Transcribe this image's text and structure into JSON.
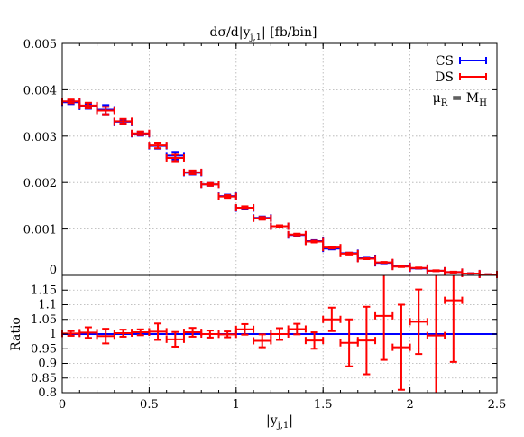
{
  "chart_data": [
    {
      "type": "scatter",
      "title": "dσ/d|y_j,1| [fb/bin]",
      "title_parts": {
        "pre": "dσ/d|y",
        "sub": "j,1",
        "post": "| [fb/bin]"
      },
      "xlim": [
        0,
        2.5
      ],
      "ylim": [
        0,
        0.005
      ],
      "y_ticks": [
        "0",
        "0.001",
        "0.002",
        "0.003",
        "0.004",
        "0.005"
      ],
      "y_tick_values": [
        0,
        0.001,
        0.002,
        0.003,
        0.004,
        0.005
      ],
      "grid": true,
      "legend": "top-right",
      "annotation": {
        "text": "μR = MH",
        "pre": "μ",
        "sub1": "R",
        "mid": " = M",
        "sub2": "H"
      },
      "bin_width": 0.1,
      "series": [
        {
          "name": "CS",
          "color": "#0000ff",
          "x": [
            0.05,
            0.15,
            0.25,
            0.35,
            0.45,
            0.55,
            0.65,
            0.75,
            0.85,
            0.95,
            1.05,
            1.15,
            1.25,
            1.35,
            1.45,
            1.55,
            1.65,
            1.75,
            1.85,
            1.95,
            2.05,
            2.15,
            2.25,
            2.35,
            2.45
          ],
          "y": [
            0.00373,
            0.00364,
            0.00357,
            0.00331,
            0.00305,
            0.00279,
            0.00258,
            0.00221,
            0.00196,
            0.00171,
            0.00145,
            0.00124,
            0.00106,
            0.00087,
            0.00074,
            0.00058,
            0.00048,
            0.00037,
            0.00027,
            0.0002,
            0.00015,
            0.0001,
            7e-05,
            4e-05,
            2e-05
          ],
          "yerr": [
            4e-05,
            5e-05,
            0.0001,
            4e-05,
            4e-05,
            6e-05,
            8e-05,
            4e-05,
            3e-05,
            3e-05,
            3e-05,
            3e-05,
            2e-05,
            2e-05,
            2e-05,
            2e-05,
            1e-05,
            1e-05,
            1e-05,
            1e-05,
            5e-06,
            5e-06,
            5e-06,
            5e-06,
            3e-06
          ]
        },
        {
          "name": "DS",
          "color": "#ff0000",
          "x": [
            0.05,
            0.15,
            0.25,
            0.35,
            0.45,
            0.55,
            0.65,
            0.75,
            0.85,
            0.95,
            1.05,
            1.15,
            1.25,
            1.35,
            1.45,
            1.55,
            1.65,
            1.75,
            1.85,
            1.95,
            2.05,
            2.15,
            2.25,
            2.35,
            2.45
          ],
          "y": [
            0.00375,
            0.00366,
            0.00355,
            0.00332,
            0.00306,
            0.0028,
            0.00253,
            0.00222,
            0.00196,
            0.0017,
            0.00146,
            0.00123,
            0.00106,
            0.00088,
            0.00073,
            0.0006,
            0.00047,
            0.00036,
            0.00028,
            0.00019,
            0.00016,
            0.0001,
            7e-05,
            4e-05,
            2e-05
          ],
          "yerr": [
            4e-05,
            6e-05,
            8e-05,
            5e-05,
            4e-05,
            6e-05,
            7e-05,
            4e-05,
            3e-05,
            3e-05,
            3e-05,
            3e-05,
            2e-05,
            2e-05,
            2e-05,
            2e-05,
            2e-05,
            1e-05,
            1e-05,
            1e-05,
            1e-05,
            1e-05,
            1e-05,
            5e-06,
            5e-06
          ]
        }
      ]
    },
    {
      "type": "scatter",
      "xlabel": "|y_j,1|",
      "xlabel_parts": {
        "pre": "|y",
        "sub": "j,1",
        "post": "|"
      },
      "ylabel": "Ratio",
      "xlim": [
        0,
        2.5
      ],
      "ylim": [
        0.8,
        1.2
      ],
      "x_ticks": [
        "0",
        "0.5",
        "1",
        "1.5",
        "2",
        "2.5"
      ],
      "x_tick_values": [
        0,
        0.5,
        1,
        1.5,
        2,
        2.5
      ],
      "y_ticks": [
        "0.8",
        "0.85",
        "0.9",
        "0.95",
        "1",
        "1.05",
        "1.1",
        "1.15"
      ],
      "y_tick_values": [
        0.8,
        0.85,
        0.9,
        0.95,
        1,
        1.05,
        1.1,
        1.15
      ],
      "grid": true,
      "bin_width": 0.1,
      "reference_line": {
        "y": 1,
        "color": "#0000ff"
      },
      "series": [
        {
          "name": "DS",
          "color": "#ff0000",
          "x": [
            0.05,
            0.15,
            0.25,
            0.35,
            0.45,
            0.55,
            0.65,
            0.75,
            0.85,
            0.95,
            1.05,
            1.15,
            1.25,
            1.35,
            1.45,
            1.55,
            1.65,
            1.75,
            1.85,
            1.95,
            2.05,
            2.15,
            2.25
          ],
          "y": [
            1.002,
            1.005,
            0.993,
            1.003,
            1.006,
            1.008,
            0.982,
            1.006,
            1.0,
            0.999,
            1.016,
            0.977,
            1.0,
            1.017,
            0.978,
            1.05,
            0.97,
            0.978,
            1.062,
            0.955,
            1.042,
            0.995,
            1.115
          ],
          "yerr": [
            0.008,
            0.018,
            0.025,
            0.012,
            0.01,
            0.028,
            0.025,
            0.015,
            0.012,
            0.01,
            0.018,
            0.022,
            0.02,
            0.018,
            0.028,
            0.04,
            0.08,
            0.115,
            0.15,
            0.145,
            0.11,
            0.28,
            0.21
          ]
        }
      ]
    }
  ]
}
